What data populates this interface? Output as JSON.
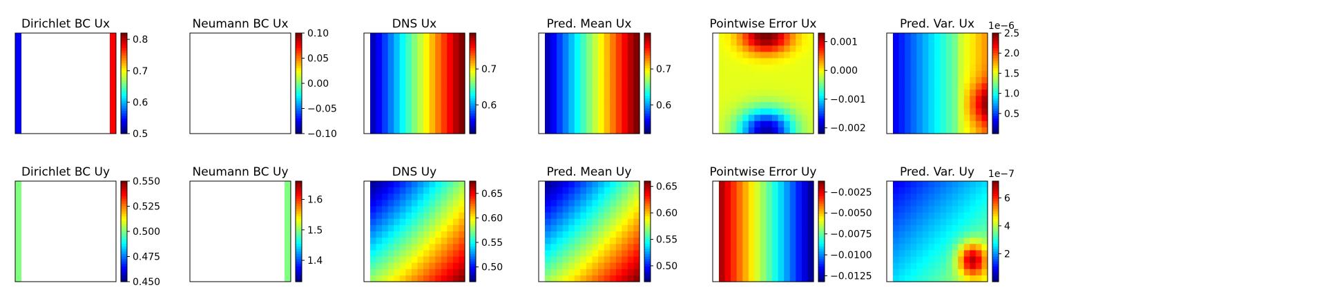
{
  "chart_data": [
    {
      "type": "heatmap",
      "title": "Dirichlet BC Ux",
      "field": "dirichlet_ux",
      "ticks": [
        "0.8",
        "0.7",
        "0.6",
        "0.5"
      ],
      "colorbar_range": [
        0.5,
        0.82
      ],
      "offset": ""
    },
    {
      "type": "heatmap",
      "title": "Neumann BC Ux",
      "field": "blank",
      "ticks": [
        "0.10",
        "0.05",
        "0.00",
        "−0.05",
        "−0.10"
      ],
      "colorbar_range": [
        -0.1,
        0.1
      ],
      "offset": ""
    },
    {
      "type": "heatmap",
      "title": "DNS Ux",
      "field": "ux",
      "ticks": [
        "0.7",
        "0.6"
      ],
      "colorbar_range": [
        0.52,
        0.8
      ],
      "offset": ""
    },
    {
      "type": "heatmap",
      "title": "Pred. Mean Ux",
      "field": "ux",
      "ticks": [
        "0.7",
        "0.6"
      ],
      "colorbar_range": [
        0.52,
        0.8
      ],
      "offset": ""
    },
    {
      "type": "heatmap",
      "title": "Pointwise Error Ux",
      "field": "err_ux",
      "ticks": [
        "0.001",
        "0.000",
        "−0.001",
        "−0.002"
      ],
      "colorbar_range": [
        -0.0022,
        0.0013
      ],
      "offset": ""
    },
    {
      "type": "heatmap",
      "title": "Pred. Var. Ux",
      "field": "var_ux",
      "ticks": [
        "2.5",
        "2.0",
        "1.5",
        "1.0",
        "0.5"
      ],
      "colorbar_range": [
        0.0,
        2.5
      ],
      "offset": "1e−6"
    },
    {
      "type": "heatmap",
      "title": "Dirichlet BC Uy",
      "field": "dirichlet_uy",
      "ticks": [
        "0.550",
        "0.525",
        "0.500",
        "0.475",
        "0.450"
      ],
      "colorbar_range": [
        0.45,
        0.55
      ],
      "offset": ""
    },
    {
      "type": "heatmap",
      "title": "Neumann BC Uy",
      "field": "neumann_uy",
      "ticks": [
        "1.6",
        "1.5",
        "1.4"
      ],
      "colorbar_range": [
        1.33,
        1.66
      ],
      "offset": ""
    },
    {
      "type": "heatmap",
      "title": "DNS Uy",
      "field": "uy",
      "ticks": [
        "0.65",
        "0.60",
        "0.55",
        "0.50"
      ],
      "colorbar_range": [
        0.47,
        0.675
      ],
      "offset": ""
    },
    {
      "type": "heatmap",
      "title": "Pred. Mean Uy",
      "field": "uy",
      "ticks": [
        "0.65",
        "0.60",
        "0.55",
        "0.50"
      ],
      "colorbar_range": [
        0.47,
        0.66
      ],
      "offset": ""
    },
    {
      "type": "heatmap",
      "title": "Pointwise Error Uy",
      "field": "err_uy",
      "ticks": [
        "−0.0025",
        "−0.0050",
        "−0.0075",
        "−0.0100",
        "−0.0125"
      ],
      "colorbar_range": [
        -0.0132,
        -0.0012
      ],
      "offset": ""
    },
    {
      "type": "heatmap",
      "title": "Pred. Var. Uy",
      "field": "var_uy",
      "ticks": [
        "6",
        "4",
        "2"
      ],
      "colorbar_range": [
        0.0,
        7.2
      ],
      "offset": "1e−7"
    }
  ],
  "colormap": "jet"
}
